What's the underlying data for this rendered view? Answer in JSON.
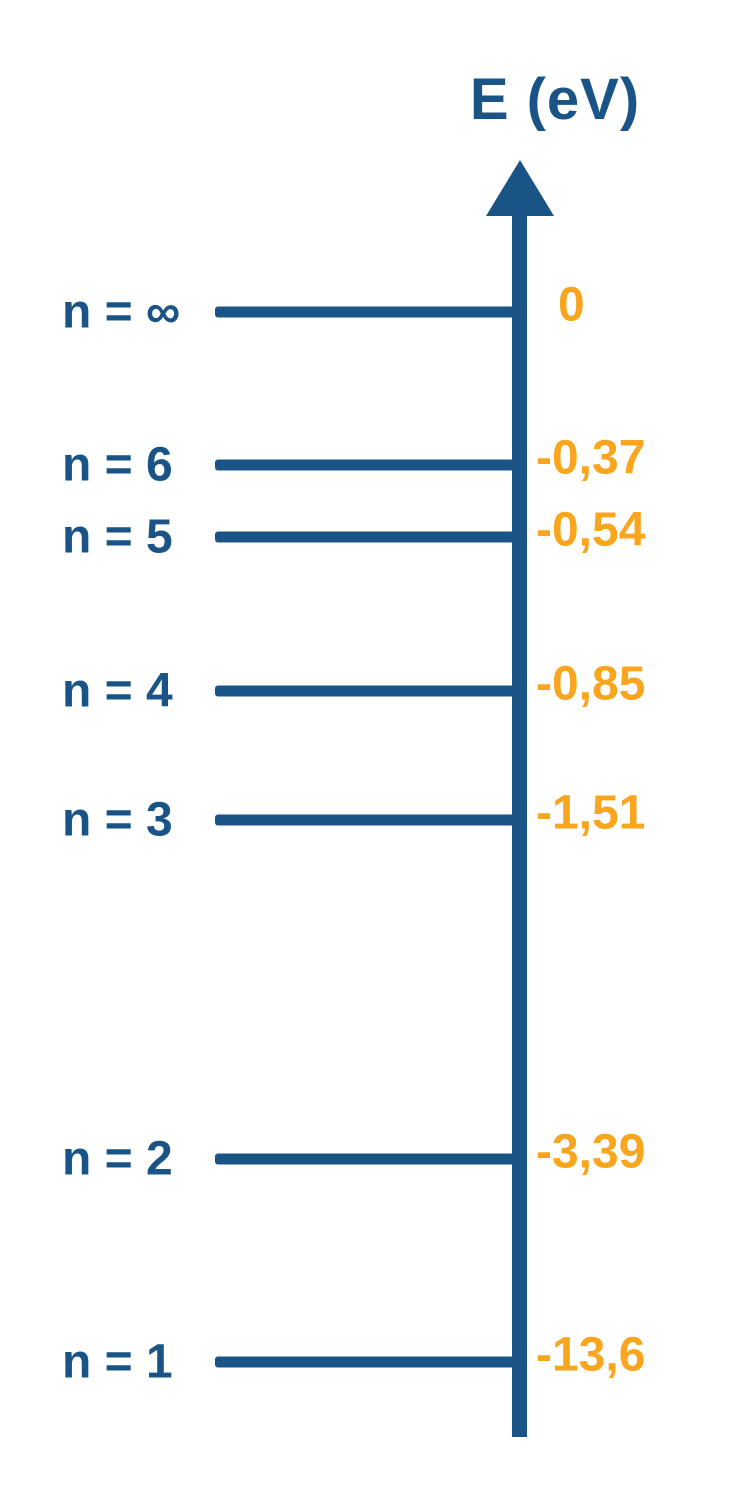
{
  "axis": {
    "title": "E (eV)"
  },
  "colors": {
    "blue": "#1A5486",
    "orange": "#F9A51D"
  },
  "levels": [
    {
      "label": "n = ∞",
      "value": "0"
    },
    {
      "label": "n = 6",
      "value": "-0,37"
    },
    {
      "label": "n = 5",
      "value": "-0,54"
    },
    {
      "label": "n = 4",
      "value": "-0,85"
    },
    {
      "label": "n = 3",
      "value": "-1,51"
    },
    {
      "label": "n = 2",
      "value": "-3,39"
    },
    {
      "label": "n = 1",
      "value": "-13,6"
    }
  ]
}
